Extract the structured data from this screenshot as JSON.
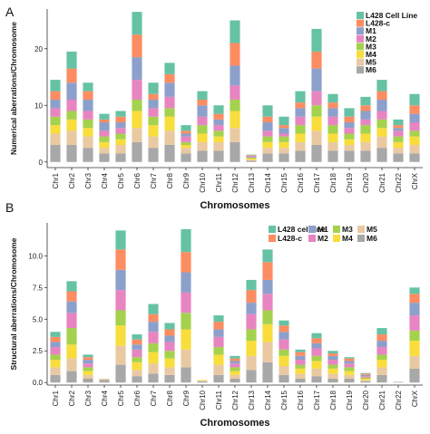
{
  "chart_data": [
    {
      "panel": "A",
      "type": "bar",
      "stacked": true,
      "xlabel": "Chromosomes",
      "ylabel": "Numerical aberrations/Chromosome",
      "ylim": [
        -1,
        27
      ],
      "yticks": [
        0,
        10,
        20
      ],
      "grid": false,
      "legend_position": "top-right",
      "categories": [
        "Chr1",
        "Chr2",
        "Chr3",
        "Chr4",
        "Chr5",
        "Chr6",
        "Chr7",
        "Chr8",
        "Chr9",
        "Chr10",
        "Chr11",
        "Chr12",
        "Chr13",
        "Chr14",
        "Chr15",
        "Chr16",
        "Chr17",
        "Chr18",
        "Chr19",
        "Chr20",
        "Chr21",
        "Chr22",
        "ChrX"
      ],
      "series": [
        {
          "name": "M6",
          "color": "#a8a8a8",
          "values": [
            3,
            3,
            2.5,
            1.5,
            1.5,
            3.5,
            2.5,
            3,
            1.5,
            2,
            2,
            3.5,
            0.2,
            1.5,
            1.5,
            2,
            3,
            2,
            2,
            2,
            2.5,
            1.5,
            1.5
          ]
        },
        {
          "name": "M5",
          "color": "#e9c9a2",
          "values": [
            2,
            2.5,
            2,
            1,
            1.5,
            2.5,
            2,
            2.5,
            1,
            1.5,
            1.5,
            2.5,
            0.2,
            1,
            1,
            1.5,
            2.5,
            1.5,
            1,
            1.5,
            2,
            1,
            1.5
          ]
        },
        {
          "name": "M4",
          "color": "#f9dd3c",
          "values": [
            1.5,
            2,
            1.5,
            1,
            1,
            3,
            2,
            2.5,
            0.5,
            1.5,
            1,
            3,
            0.2,
            1,
            1,
            1.5,
            2.5,
            1.5,
            1,
            1.5,
            1.5,
            1,
            1.5
          ]
        },
        {
          "name": "M3",
          "color": "#a4d24e",
          "values": [
            1.5,
            1.5,
            1.5,
            1,
            1,
            2,
            1.5,
            1.5,
            0.5,
            1.5,
            1,
            2,
            0.2,
            1,
            1,
            1.5,
            2,
            1.5,
            1,
            1.5,
            1.5,
            1,
            1
          ]
        },
        {
          "name": "M2",
          "color": "#e785c1",
          "values": [
            1.5,
            2,
            1.5,
            1,
            1,
            3.5,
            1.5,
            2,
            1,
            1.5,
            1,
            2.5,
            0.2,
            1,
            0.5,
            1.5,
            2.5,
            1.5,
            1,
            1,
            1.5,
            1,
            1.5
          ]
        },
        {
          "name": "M1",
          "color": "#8da0cb",
          "values": [
            1.5,
            3,
            2,
            1.5,
            1,
            4,
            1.5,
            2.5,
            0.5,
            2,
            1,
            3.5,
            0.1,
            1.5,
            1,
            1.5,
            4,
            1.5,
            1,
            1.5,
            2,
            0.5,
            1.5
          ]
        },
        {
          "name": "L428-c",
          "color": "#fc8d62",
          "values": [
            1.5,
            2.5,
            1.5,
            0.5,
            1,
            4,
            1,
            1.5,
            0.5,
            1,
            1,
            4,
            0.1,
            1,
            0.5,
            1,
            3,
            1,
            1,
            1,
            1.5,
            0.5,
            1.5
          ]
        },
        {
          "name": "L428 Cell Line",
          "color": "#66c2a5",
          "values": [
            2,
            3,
            1.5,
            1,
            1,
            4,
            2,
            2,
            1,
            1.5,
            1.5,
            4,
            0.1,
            2,
            1.5,
            2,
            4,
            1.5,
            1.5,
            1.5,
            2,
            1,
            2
          ]
        }
      ]
    },
    {
      "panel": "B",
      "type": "bar",
      "stacked": true,
      "xlabel": "Chromosomes",
      "ylabel": "Structural aberrations/Chromosome",
      "ylim": [
        -0.2,
        12.6
      ],
      "yticks": [
        0.0,
        2.5,
        5.0,
        7.5,
        10.0
      ],
      "grid": false,
      "legend_position": "top-right",
      "categories": [
        "Chr1",
        "Chr2",
        "Chr3",
        "Chr4",
        "Chr5",
        "Chr6",
        "Chr7",
        "Chr8",
        "Chr9",
        "Chr10",
        "Chr11",
        "Chr12",
        "Chr13",
        "Chr14",
        "Chr15",
        "Chr16",
        "Chr17",
        "Chr18",
        "Chr19",
        "Chr20",
        "Chr21",
        "Chr22",
        "ChrX"
      ],
      "series": [
        {
          "name": "M6",
          "color": "#a8a8a8",
          "values": [
            0.6,
            0.9,
            0.3,
            0.2,
            1.4,
            0.5,
            0.7,
            0.6,
            1.2,
            0.1,
            0.6,
            0.3,
            1.0,
            1.6,
            0.6,
            0.3,
            0.5,
            0.3,
            0.3,
            0.1,
            0.6,
            0.05,
            1.1
          ]
        },
        {
          "name": "M5",
          "color": "#e9c9a2",
          "values": [
            0.6,
            1.0,
            0.3,
            0.1,
            1.5,
            0.5,
            0.8,
            0.6,
            1.4,
            0.05,
            0.8,
            0.3,
            1.1,
            1.6,
            0.7,
            0.4,
            0.6,
            0.4,
            0.3,
            0.1,
            0.6,
            0,
            1.0
          ]
        },
        {
          "name": "M4",
          "color": "#f9dd3c",
          "values": [
            0.6,
            1.1,
            0.3,
            0,
            1.6,
            0.6,
            0.9,
            0.7,
            1.6,
            0.05,
            0.8,
            0.3,
            1.2,
            1.4,
            0.8,
            0.4,
            0.6,
            0.4,
            0.3,
            0.1,
            0.6,
            0,
            1.2
          ]
        },
        {
          "name": "M3",
          "color": "#a4d24e",
          "values": [
            0.4,
            1.3,
            0.3,
            0,
            1.2,
            0.4,
            0.7,
            0.6,
            1.3,
            0,
            0.6,
            0.3,
            0.9,
            1.1,
            0.5,
            0.3,
            0.4,
            0.3,
            0.3,
            0.1,
            0.4,
            0,
            0.8
          ]
        },
        {
          "name": "M2",
          "color": "#e785c1",
          "values": [
            0.6,
            1.2,
            0.3,
            0,
            1.6,
            0.6,
            0.9,
            0.7,
            1.6,
            0,
            0.8,
            0.3,
            1.2,
            1.3,
            0.8,
            0.4,
            0.6,
            0.4,
            0.3,
            0.1,
            0.6,
            0,
            1.2
          ]
        },
        {
          "name": "M1",
          "color": "#8da0cb",
          "values": [
            0.4,
            0.9,
            0.3,
            0,
            1.6,
            0.4,
            0.8,
            0.5,
            1.6,
            0,
            0.6,
            0.2,
            0.9,
            1.1,
            0.6,
            0.3,
            0.4,
            0.3,
            0.2,
            0.1,
            0.5,
            0,
            1.0
          ]
        },
        {
          "name": "L428-c",
          "color": "#fc8d62",
          "values": [
            0.4,
            0.8,
            0.2,
            0,
            1.6,
            0.4,
            0.6,
            0.5,
            1.6,
            0,
            0.6,
            0.2,
            1.0,
            1.4,
            0.5,
            0.3,
            0.4,
            0.2,
            0.2,
            0.1,
            0.5,
            0,
            0.7
          ]
        },
        {
          "name": "L428 cell line",
          "color": "#66c2a5",
          "values": [
            0.4,
            0.8,
            0.2,
            0,
            1.5,
            0.4,
            0.8,
            0.5,
            1.8,
            0,
            0.5,
            0.2,
            0.8,
            1.0,
            0.4,
            0.2,
            0.4,
            0.2,
            0.1,
            0.05,
            0.5,
            0,
            0.5
          ]
        }
      ]
    }
  ],
  "legend_b_order": [
    "L428 cell line",
    "M1",
    "M3",
    "M5",
    "L428-c",
    "M2",
    "M4",
    "M6"
  ]
}
